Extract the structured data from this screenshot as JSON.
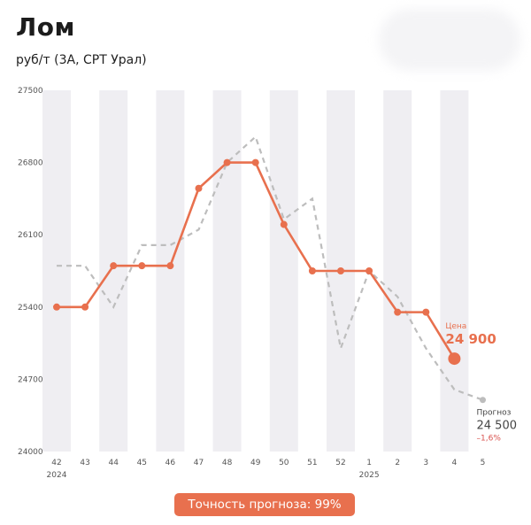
{
  "header": {
    "title": "Лом",
    "subtitle": "руб/т (3А, CPT Урал)"
  },
  "accuracy_label": "Точность прогноза: 99%",
  "colors": {
    "price": "#e8704e",
    "forecast": "#bdbdbd",
    "band": "#efeef2",
    "badge": "#e8704e",
    "change_negative": "#d9534f"
  },
  "chart_data": {
    "type": "line",
    "title": "Лом",
    "subtitle": "руб/т (3А, CPT Урал)",
    "categories": [
      "42",
      "43",
      "44",
      "45",
      "46",
      "47",
      "48",
      "49",
      "50",
      "51",
      "52",
      "1",
      "2",
      "3",
      "4",
      "5"
    ],
    "year_labels": [
      {
        "at": "42",
        "text": "2024"
      },
      {
        "at": "1",
        "text": "2025"
      }
    ],
    "ylim": [
      24000,
      27500
    ],
    "yticks": [
      24000,
      24700,
      25400,
      26100,
      26800,
      27500
    ],
    "grid": false,
    "series": [
      {
        "key": "price",
        "style": "solid",
        "values": [
          25400,
          25400,
          25800,
          25800,
          25800,
          26550,
          26800,
          26800,
          26200,
          25750,
          25750,
          25750,
          25350,
          25350,
          24900,
          null
        ]
      },
      {
        "key": "forecast",
        "style": "dashed",
        "values": [
          25800,
          25800,
          25400,
          26000,
          26000,
          26150,
          26800,
          27050,
          26250,
          26450,
          25000,
          25750,
          25500,
          25000,
          24600,
          24500
        ]
      }
    ],
    "callouts": {
      "price": {
        "label": "Цена",
        "value": "24 900"
      },
      "forecast": {
        "label": "Прогноз",
        "value": "24 500",
        "change": "–1,6%"
      }
    }
  }
}
